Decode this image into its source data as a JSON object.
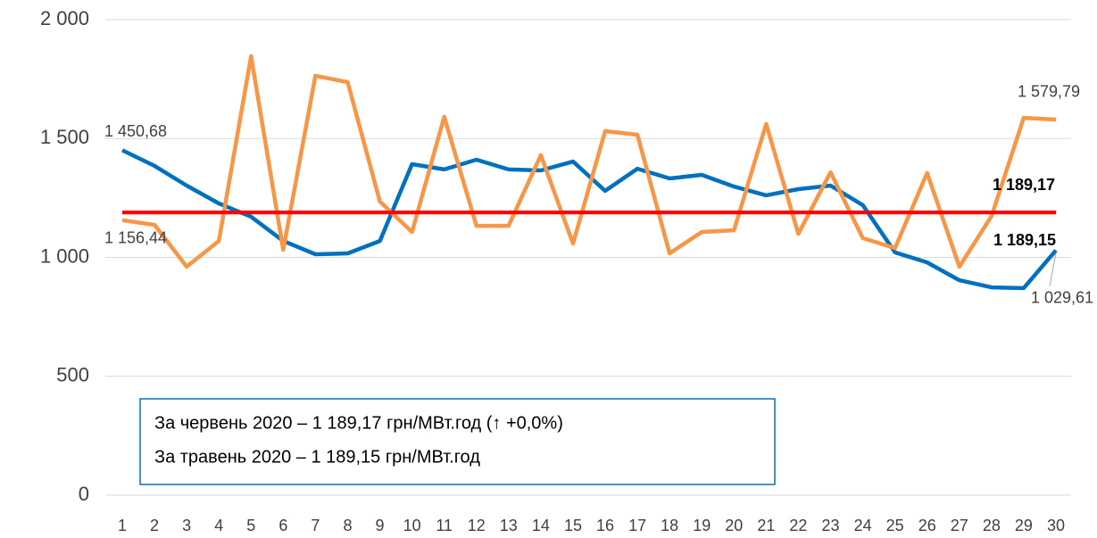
{
  "chart_data": {
    "type": "line",
    "categories": [
      "1",
      "2",
      "3",
      "4",
      "5",
      "6",
      "7",
      "8",
      "9",
      "10",
      "11",
      "12",
      "13",
      "14",
      "15",
      "16",
      "17",
      "18",
      "19",
      "20",
      "21",
      "22",
      "23",
      "24",
      "25",
      "26",
      "27",
      "28",
      "29",
      "30"
    ],
    "series": [
      {
        "color": "#0070c0",
        "values": [
          1450.68,
          1385,
          1302,
          1227,
          1171,
          1069,
          1013,
          1017,
          1069,
          1392,
          1370,
          1411,
          1370,
          1366,
          1403,
          1280,
          1373,
          1332,
          1347,
          1298,
          1261,
          1287,
          1302,
          1220,
          1021,
          979,
          904,
          874,
          871,
          1029.61
        ],
        "value_labels": [
          "1 450,68",
          null,
          null,
          null,
          null,
          null,
          null,
          null,
          null,
          null,
          null,
          null,
          null,
          null,
          null,
          null,
          null,
          null,
          null,
          null,
          null,
          null,
          null,
          null,
          null,
          null,
          null,
          null,
          null,
          "1 029,61"
        ]
      },
      {
        "color": "#f79646",
        "values": [
          1156.44,
          1137,
          961,
          1069,
          1846,
          1032,
          1764,
          1737,
          1235,
          1107,
          1591,
          1133,
          1133,
          1430,
          1058,
          1531,
          1516,
          1017,
          1107,
          1114,
          1561,
          1099,
          1358,
          1081,
          1039,
          1355,
          961,
          1174,
          1587,
          1579.79
        ],
        "value_labels": [
          "1 156,44",
          null,
          null,
          null,
          null,
          null,
          null,
          null,
          null,
          null,
          null,
          null,
          null,
          null,
          null,
          null,
          null,
          null,
          null,
          null,
          null,
          null,
          null,
          null,
          null,
          null,
          null,
          null,
          null,
          "1 579,79"
        ]
      },
      {
        "color": "#ff0000",
        "values": [
          1189.17,
          1189.17,
          1189.17,
          1189.17,
          1189.17,
          1189.17,
          1189.17,
          1189.17,
          1189.17,
          1189.17,
          1189.17,
          1189.17,
          1189.17,
          1189.17,
          1189.17,
          1189.17,
          1189.17,
          1189.17,
          1189.17,
          1189.17,
          1189.17,
          1189.17,
          1189.17,
          1189.17,
          1189.17,
          1189.17,
          1189.17,
          1189.17,
          1189.17,
          1189.17
        ],
        "value_labels": [
          null,
          null,
          null,
          null,
          null,
          null,
          null,
          null,
          null,
          null,
          null,
          null,
          null,
          null,
          null,
          null,
          null,
          null,
          null,
          null,
          null,
          null,
          null,
          null,
          null,
          null,
          null,
          null,
          null,
          "1 189,17"
        ]
      },
      {
        "color": "#ff0000",
        "values": [
          1189.15,
          1189.15,
          1189.15,
          1189.15,
          1189.15,
          1189.15,
          1189.15,
          1189.15,
          1189.15,
          1189.15,
          1189.15,
          1189.15,
          1189.15,
          1189.15,
          1189.15,
          1189.15,
          1189.15,
          1189.15,
          1189.15,
          1189.15,
          1189.15,
          1189.15,
          1189.15,
          1189.15,
          1189.15,
          1189.15,
          1189.15,
          1189.15,
          1189.15,
          1189.15
        ],
        "value_labels": [
          null,
          null,
          null,
          null,
          null,
          null,
          null,
          null,
          null,
          null,
          null,
          null,
          null,
          null,
          null,
          null,
          null,
          null,
          null,
          null,
          null,
          null,
          null,
          null,
          null,
          null,
          null,
          null,
          null,
          "1 189,15"
        ]
      }
    ],
    "ylim": [
      0,
      2000
    ],
    "yticks": [
      0,
      500,
      {
        "value": 1000,
        "label": "1 000"
      },
      {
        "value": 1500,
        "label": "1 500"
      },
      {
        "value": 2000,
        "label": "2 000"
      }
    ],
    "grid": true,
    "annotations": [
      "За червень 2020 – 1 189,17 грн/МВт.год (↑ +0,0%)",
      "За травень 2020 – 1 189,15 грн/МВт.год"
    ]
  }
}
